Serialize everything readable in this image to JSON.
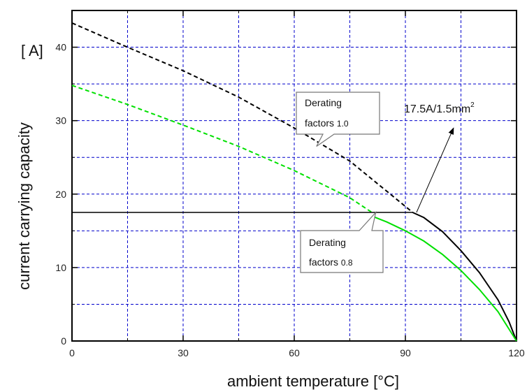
{
  "chart_data": {
    "type": "line",
    "xlabel": "ambient temperature [°C]",
    "ylabel": "current carrying capacity",
    "y_unit": "[ A]",
    "xlim": [
      0,
      120
    ],
    "ylim": [
      0,
      45
    ],
    "x_ticks": [
      0,
      30,
      60,
      90,
      120
    ],
    "y_ticks": [
      0,
      10,
      20,
      30,
      40
    ],
    "grid": true,
    "grid_x": [
      15,
      30,
      45,
      60,
      75,
      90,
      105
    ],
    "grid_y": [
      5,
      10,
      15,
      20,
      25,
      30,
      35,
      40
    ],
    "colors": {
      "frame": "#000000",
      "grid": "#0000cc",
      "factor_1_0": "#000000",
      "factor_0_8": "#00e000"
    },
    "series": [
      {
        "key": "factor_1_0",
        "dashed_x": [
          0,
          15,
          30,
          45,
          60,
          75,
          92
        ],
        "dashed_y": [
          43.3,
          40.0,
          36.8,
          33.2,
          29.0,
          24.5,
          17.5
        ],
        "solid_x": [
          92,
          95,
          100,
          105,
          110,
          115,
          118,
          120
        ],
        "solid_y": [
          17.5,
          16.8,
          14.9,
          12.3,
          9.3,
          5.6,
          2.6,
          0.0
        ]
      },
      {
        "key": "factor_0_8",
        "dashed_x": [
          0,
          15,
          30,
          45,
          60,
          75,
          81
        ],
        "dashed_y": [
          34.8,
          32.2,
          29.4,
          26.5,
          23.2,
          19.5,
          17.5
        ],
        "solid_x": [
          81,
          85,
          90,
          95,
          100,
          105,
          110,
          115,
          120
        ],
        "solid_y": [
          17.0,
          16.2,
          15.0,
          13.6,
          11.8,
          9.6,
          7.0,
          4.0,
          0.0
        ]
      }
    ],
    "limit_line": {
      "y": 17.5,
      "x_start": 0,
      "x_end": 92
    },
    "annotations": {
      "callout_1": {
        "line1": "Derating",
        "line2": "factors",
        "factor": "1.0",
        "point_x": 66,
        "point_y": 26.5
      },
      "callout_2": {
        "line1": "Derating",
        "line2": "factors",
        "factor": "0.8",
        "point_x": 82,
        "point_y": 17.5
      },
      "rating": {
        "text": "17.5A/1.5mm",
        "sup": "2",
        "arrow_from_x": 93,
        "arrow_from_y": 17.5,
        "arrow_to_x": 103,
        "arrow_to_y": 29
      }
    }
  }
}
